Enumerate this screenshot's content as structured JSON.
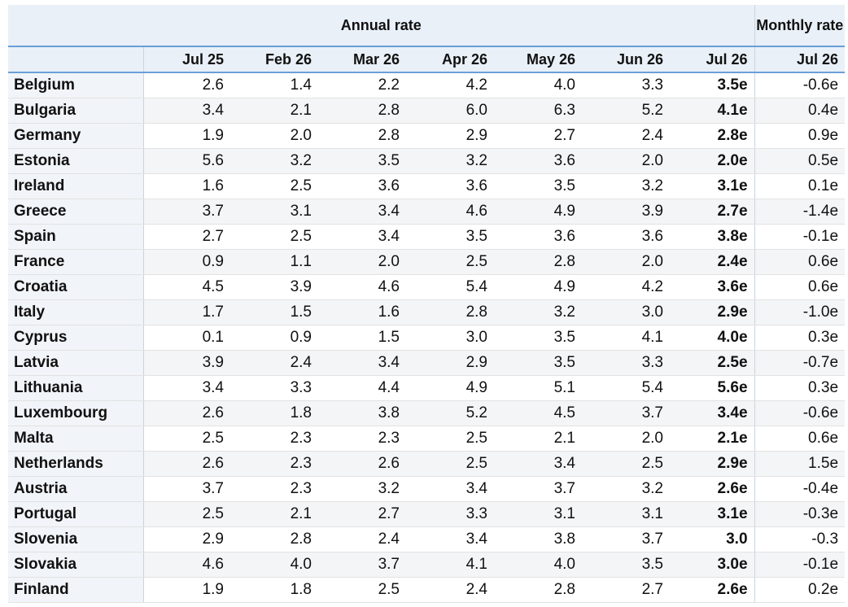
{
  "header": {
    "annual_group": "Annual rate",
    "monthly_group": "Monthly rate",
    "columns": [
      "Jul 25",
      "Feb 26",
      "Mar 26",
      "Apr 26",
      "May 26",
      "Jun 26",
      "Jul 26",
      "Jul 26"
    ]
  },
  "table": {
    "rows": [
      [
        "Belgium",
        "2.6",
        "1.4",
        "2.2",
        "4.2",
        "4.0",
        "3.3",
        "3.5e",
        "-0.6e"
      ],
      [
        "Bulgaria",
        "3.4",
        "2.1",
        "2.8",
        "6.0",
        "6.3",
        "5.2",
        "4.1e",
        "0.4e"
      ],
      [
        "Germany",
        "1.9",
        "2.0",
        "2.8",
        "2.9",
        "2.7",
        "2.4",
        "2.8e",
        "0.9e"
      ],
      [
        "Estonia",
        "5.6",
        "3.2",
        "3.5",
        "3.2",
        "3.6",
        "2.0",
        "2.0e",
        "0.5e"
      ],
      [
        "Ireland",
        "1.6",
        "2.5",
        "3.6",
        "3.6",
        "3.5",
        "3.2",
        "3.1e",
        "0.1e"
      ],
      [
        "Greece",
        "3.7",
        "3.1",
        "3.4",
        "4.6",
        "4.9",
        "3.9",
        "2.7e",
        "-1.4e"
      ],
      [
        "Spain",
        "2.7",
        "2.5",
        "3.4",
        "3.5",
        "3.6",
        "3.6",
        "3.8e",
        "-0.1e"
      ],
      [
        "France",
        "0.9",
        "1.1",
        "2.0",
        "2.5",
        "2.8",
        "2.0",
        "2.4e",
        "0.6e"
      ],
      [
        "Croatia",
        "4.5",
        "3.9",
        "4.6",
        "5.4",
        "4.9",
        "4.2",
        "3.6e",
        "0.6e"
      ],
      [
        "Italy",
        "1.7",
        "1.5",
        "1.6",
        "2.8",
        "3.2",
        "3.0",
        "2.9e",
        "-1.0e"
      ],
      [
        "Cyprus",
        "0.1",
        "0.9",
        "1.5",
        "3.0",
        "3.5",
        "4.1",
        "4.0e",
        "0.3e"
      ],
      [
        "Latvia",
        "3.9",
        "2.4",
        "3.4",
        "2.9",
        "3.5",
        "3.3",
        "2.5e",
        "-0.7e"
      ],
      [
        "Lithuania",
        "3.4",
        "3.3",
        "4.4",
        "4.9",
        "5.1",
        "5.4",
        "5.6e",
        "0.3e"
      ],
      [
        "Luxembourg",
        "2.6",
        "1.8",
        "3.8",
        "5.2",
        "4.5",
        "3.7",
        "3.4e",
        "-0.6e"
      ],
      [
        "Malta",
        "2.5",
        "2.3",
        "2.3",
        "2.5",
        "2.1",
        "2.0",
        "2.1e",
        "0.6e"
      ],
      [
        "Netherlands",
        "2.6",
        "2.3",
        "2.6",
        "2.5",
        "3.4",
        "2.5",
        "2.9e",
        "1.5e"
      ],
      [
        "Austria",
        "3.7",
        "2.3",
        "3.2",
        "3.4",
        "3.7",
        "3.2",
        "2.6e",
        "-0.4e"
      ],
      [
        "Portugal",
        "2.5",
        "2.1",
        "2.7",
        "3.3",
        "3.1",
        "3.1",
        "3.1e",
        "-0.3e"
      ],
      [
        "Slovenia",
        "2.9",
        "2.8",
        "2.4",
        "3.4",
        "3.8",
        "3.7",
        "3.0",
        "-0.3"
      ],
      [
        "Slovakia",
        "4.6",
        "4.0",
        "3.7",
        "4.1",
        "4.0",
        "3.5",
        "3.0e",
        "-0.1e"
      ],
      [
        "Finland",
        "1.9",
        "1.8",
        "2.5",
        "2.4",
        "2.8",
        "2.7",
        "2.6e",
        "0.2e"
      ]
    ]
  }
}
